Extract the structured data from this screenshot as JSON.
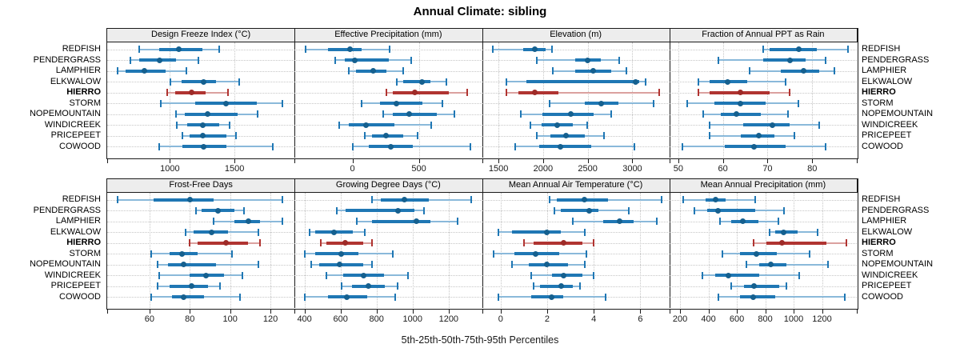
{
  "title": "Annual Climate: sibling",
  "xlabel": "5th-25th-50th-75th-95th Percentiles",
  "percentile_labels": [
    "5th",
    "25th",
    "50th",
    "75th",
    "95th"
  ],
  "sites": [
    "REDFISH",
    "PENDERGRASS",
    "LAMPHIER",
    "ELKWALOW",
    "HIERRO",
    "STORM",
    "NOPEMOUNTAIN",
    "WINDICREEK",
    "PRICEPEET",
    "COWOOD"
  ],
  "highlight_site": "HIERRO",
  "colors": {
    "blue": "#1f77b4",
    "blue_light": "#8ab9da",
    "blue_dot": "#15608f",
    "red": "#b03431",
    "red_light": "#dba19f",
    "red_dot": "#9e2b28",
    "strip_bg": "#ededed",
    "grid": "#c6c6c6",
    "border": "#1a1a1a"
  },
  "chart_data": [
    {
      "type": "dotplot-whisker",
      "row": 0,
      "title": "Design Freeze Index (°C)",
      "xlim": [
        515,
        1965
      ],
      "ticks": [
        1000,
        1500
      ],
      "series": [
        {
          "site": "REDFISH",
          "p": [
            760,
            915,
            1070,
            1250,
            1380
          ]
        },
        {
          "site": "PENDERGRASS",
          "p": [
            695,
            760,
            920,
            1050,
            1220
          ]
        },
        {
          "site": "LAMPHIER",
          "p": [
            595,
            655,
            800,
            965,
            1130
          ]
        },
        {
          "site": "ELKWALOW",
          "p": [
            1005,
            1090,
            1260,
            1355,
            1535
          ]
        },
        {
          "site": "HIERRO",
          "p": [
            980,
            1040,
            1165,
            1275,
            1450
          ]
        },
        {
          "site": "STORM",
          "p": [
            930,
            1195,
            1435,
            1670,
            1870
          ]
        },
        {
          "site": "NOPEMOUNTAIN",
          "p": [
            1045,
            1115,
            1290,
            1525,
            1680
          ]
        },
        {
          "site": "WINDICREEK",
          "p": [
            1055,
            1135,
            1255,
            1380,
            1460
          ]
        },
        {
          "site": "PRICEPEET",
          "p": [
            1095,
            1155,
            1255,
            1440,
            1510
          ]
        },
        {
          "site": "COWOOD",
          "p": [
            920,
            1095,
            1260,
            1440,
            1795
          ]
        }
      ]
    },
    {
      "type": "dotplot-whisker",
      "row": 0,
      "title": "Effective Precipitation (mm)",
      "xlim": [
        -435,
        975
      ],
      "ticks": [
        0,
        500
      ],
      "series": [
        {
          "site": "REDFISH",
          "p": [
            -350,
            -185,
            -20,
            70,
            280
          ]
        },
        {
          "site": "PENDERGRASS",
          "p": [
            -130,
            -55,
            20,
            275,
            440
          ]
        },
        {
          "site": "LAMPHIER",
          "p": [
            -30,
            25,
            155,
            255,
            385
          ]
        },
        {
          "site": "ELKWALOW",
          "p": [
            335,
            385,
            525,
            585,
            705
          ]
        },
        {
          "site": "HIERRO",
          "p": [
            255,
            305,
            470,
            725,
            865
          ]
        },
        {
          "site": "STORM",
          "p": [
            70,
            205,
            330,
            525,
            675
          ]
        },
        {
          "site": "NOPEMOUNTAIN",
          "p": [
            230,
            305,
            430,
            635,
            765
          ]
        },
        {
          "site": "WINDICREEK",
          "p": [
            -100,
            -25,
            100,
            315,
            595
          ]
        },
        {
          "site": "PRICEPEET",
          "p": [
            95,
            145,
            255,
            385,
            490
          ]
        },
        {
          "site": "COWOOD",
          "p": [
            5,
            125,
            290,
            455,
            890
          ]
        }
      ]
    },
    {
      "type": "dotplot-whisker",
      "row": 0,
      "title": "Elevation (m)",
      "xlim": [
        1315,
        3415
      ],
      "ticks": [
        1500,
        2000,
        2500,
        3000
      ],
      "series": [
        {
          "site": "REDFISH",
          "p": [
            1440,
            1775,
            1910,
            2030,
            2100
          ]
        },
        {
          "site": "PENDERGRASS",
          "p": [
            1930,
            2360,
            2495,
            2645,
            2855
          ]
        },
        {
          "site": "LAMPHIER",
          "p": [
            2105,
            2360,
            2560,
            2765,
            2930
          ]
        },
        {
          "site": "ELKWALOW",
          "p": [
            1590,
            1815,
            3035,
            3080,
            3145
          ]
        },
        {
          "site": "HIERRO",
          "p": [
            1590,
            1725,
            1910,
            2175,
            3305
          ]
        },
        {
          "site": "STORM",
          "p": [
            2070,
            2465,
            2650,
            2845,
            3235
          ]
        },
        {
          "site": "NOPEMOUNTAIN",
          "p": [
            1750,
            1990,
            2310,
            2570,
            2760
          ]
        },
        {
          "site": "WINDICREEK",
          "p": [
            1860,
            1985,
            2160,
            2330,
            2495
          ]
        },
        {
          "site": "PRICEPEET",
          "p": [
            1930,
            2080,
            2260,
            2470,
            2680
          ]
        },
        {
          "site": "COWOOD",
          "p": [
            1685,
            1960,
            2190,
            2540,
            3025
          ]
        }
      ]
    },
    {
      "type": "dotplot-whisker",
      "row": 0,
      "title": "Fraction of Annual PPT as Rain",
      "xlim": [
        48,
        90
      ],
      "ticks": [
        50,
        60,
        70,
        80
      ],
      "series": [
        {
          "site": "REDFISH",
          "p": [
            69,
            70.5,
            77,
            81,
            88
          ]
        },
        {
          "site": "PENDERGRASS",
          "p": [
            59,
            69,
            75,
            78.5,
            83
          ]
        },
        {
          "site": "LAMPHIER",
          "p": [
            66,
            73,
            78,
            81.5,
            85
          ]
        },
        {
          "site": "ELKWALOW",
          "p": [
            54.5,
            57,
            61,
            65.5,
            74
          ]
        },
        {
          "site": "HIERRO",
          "p": [
            54.5,
            57,
            64,
            70.5,
            75
          ]
        },
        {
          "site": "STORM",
          "p": [
            52,
            58,
            64,
            69.5,
            77
          ]
        },
        {
          "site": "NOPEMOUNTAIN",
          "p": [
            55.5,
            59.5,
            63,
            68.5,
            74.5
          ]
        },
        {
          "site": "WINDICREEK",
          "p": [
            57,
            64.5,
            71,
            75,
            81.5
          ]
        },
        {
          "site": "PRICEPEET",
          "p": [
            57,
            64,
            68,
            71.5,
            76
          ]
        },
        {
          "site": "COWOOD",
          "p": [
            51,
            60.5,
            67,
            74,
            83
          ]
        }
      ]
    },
    {
      "type": "dotplot-whisker",
      "row": 1,
      "title": "Frost-Free Days",
      "xlim": [
        39,
        132
      ],
      "ticks": [
        60,
        80,
        100,
        120
      ],
      "series": [
        {
          "site": "REDFISH",
          "p": [
            44,
            62,
            80,
            92,
            126
          ]
        },
        {
          "site": "PENDERGRASS",
          "p": [
            83,
            86,
            94,
            102,
            107
          ]
        },
        {
          "site": "LAMPHIER",
          "p": [
            92,
            102,
            109,
            115,
            126
          ]
        },
        {
          "site": "ELKWALOW",
          "p": [
            78,
            82,
            91,
            99,
            114
          ]
        },
        {
          "site": "HIERRO",
          "p": [
            80,
            84,
            98,
            109,
            115
          ]
        },
        {
          "site": "STORM",
          "p": [
            61,
            70,
            76,
            84,
            101
          ]
        },
        {
          "site": "NOPEMOUNTAIN",
          "p": [
            64,
            69,
            77,
            93,
            114
          ]
        },
        {
          "site": "WINDICREEK",
          "p": [
            65,
            80,
            88,
            97,
            106
          ]
        },
        {
          "site": "PRICEPEET",
          "p": [
            64,
            70,
            81,
            89,
            95
          ]
        },
        {
          "site": "COWOOD",
          "p": [
            61,
            71,
            77,
            87,
            105
          ]
        }
      ]
    },
    {
      "type": "dotplot-whisker",
      "row": 1,
      "title": "Growing Degree Days (°C)",
      "xlim": [
        345,
        1385
      ],
      "ticks": [
        400,
        600,
        800,
        1000,
        1200
      ],
      "series": [
        {
          "site": "REDFISH",
          "p": [
            775,
            825,
            955,
            1090,
            1325
          ]
        },
        {
          "site": "PENDERGRASS",
          "p": [
            580,
            630,
            920,
            1010,
            1065
          ]
        },
        {
          "site": "LAMPHIER",
          "p": [
            690,
            775,
            1020,
            1100,
            1250
          ]
        },
        {
          "site": "ELKWALOW",
          "p": [
            430,
            460,
            565,
            670,
            735
          ]
        },
        {
          "site": "HIERRO",
          "p": [
            490,
            520,
            625,
            725,
            775
          ]
        },
        {
          "site": "STORM",
          "p": [
            400,
            460,
            605,
            700,
            890
          ]
        },
        {
          "site": "NOPEMOUNTAIN",
          "p": [
            435,
            480,
            595,
            725,
            775
          ]
        },
        {
          "site": "WINDICREEK",
          "p": [
            520,
            615,
            730,
            840,
            975
          ]
        },
        {
          "site": "PRICEPEET",
          "p": [
            605,
            665,
            755,
            845,
            915
          ]
        },
        {
          "site": "COWOOD",
          "p": [
            400,
            530,
            635,
            750,
            905
          ]
        }
      ]
    },
    {
      "type": "dotplot-whisker",
      "row": 1,
      "title": "Mean Annual Air Temperature (°C)",
      "xlim": [
        -0.8,
        7.25
      ],
      "ticks": [
        0,
        2,
        4,
        6
      ],
      "series": [
        {
          "site": "REDFISH",
          "p": [
            2.1,
            2.4,
            3.6,
            4.6,
            6.9
          ]
        },
        {
          "site": "PENDERGRASS",
          "p": [
            2.3,
            2.6,
            3.8,
            4.2,
            5.5
          ]
        },
        {
          "site": "LAMPHIER",
          "p": [
            3.1,
            4.4,
            5.1,
            5.7,
            6.7
          ]
        },
        {
          "site": "ELKWALOW",
          "p": [
            -0.1,
            0.5,
            2.0,
            2.6,
            3.6
          ]
        },
        {
          "site": "HIERRO",
          "p": [
            1.0,
            1.4,
            2.7,
            3.5,
            4.0
          ]
        },
        {
          "site": "STORM",
          "p": [
            -0.3,
            0.6,
            1.5,
            2.5,
            3.7
          ]
        },
        {
          "site": "NOPEMOUNTAIN",
          "p": [
            0.5,
            1.2,
            2.0,
            2.9,
            3.6
          ]
        },
        {
          "site": "WINDICREEK",
          "p": [
            1.3,
            2.2,
            2.7,
            3.5,
            4.0
          ]
        },
        {
          "site": "PRICEPEET",
          "p": [
            1.4,
            1.7,
            2.6,
            3.1,
            3.4
          ]
        },
        {
          "site": "COWOOD",
          "p": [
            -0.1,
            1.3,
            2.2,
            2.7,
            4.5
          ]
        }
      ]
    },
    {
      "type": "dotplot-whisker",
      "row": 1,
      "title": "Mean Annual Precipitation (mm)",
      "xlim": [
        125,
        1445
      ],
      "ticks": [
        200,
        400,
        600,
        800,
        1000,
        1200
      ],
      "series": [
        {
          "site": "REDFISH",
          "p": [
            220,
            380,
            450,
            520,
            730
          ]
        },
        {
          "site": "PENDERGRASS",
          "p": [
            300,
            390,
            470,
            730,
            930
          ]
        },
        {
          "site": "LAMPHIER",
          "p": [
            480,
            560,
            640,
            750,
            890
          ]
        },
        {
          "site": "ELKWALOW",
          "p": [
            830,
            870,
            930,
            1030,
            1170
          ]
        },
        {
          "site": "HIERRO",
          "p": [
            720,
            810,
            920,
            1230,
            1370
          ]
        },
        {
          "site": "STORM",
          "p": [
            500,
            620,
            740,
            880,
            1110
          ]
        },
        {
          "site": "NOPEMOUNTAIN",
          "p": [
            670,
            760,
            840,
            950,
            1240
          ]
        },
        {
          "site": "WINDICREEK",
          "p": [
            360,
            450,
            540,
            760,
            1040
          ]
        },
        {
          "site": "PRICEPEET",
          "p": [
            560,
            650,
            720,
            900,
            950
          ]
        },
        {
          "site": "COWOOD",
          "p": [
            470,
            620,
            715,
            870,
            1360
          ]
        }
      ]
    }
  ]
}
